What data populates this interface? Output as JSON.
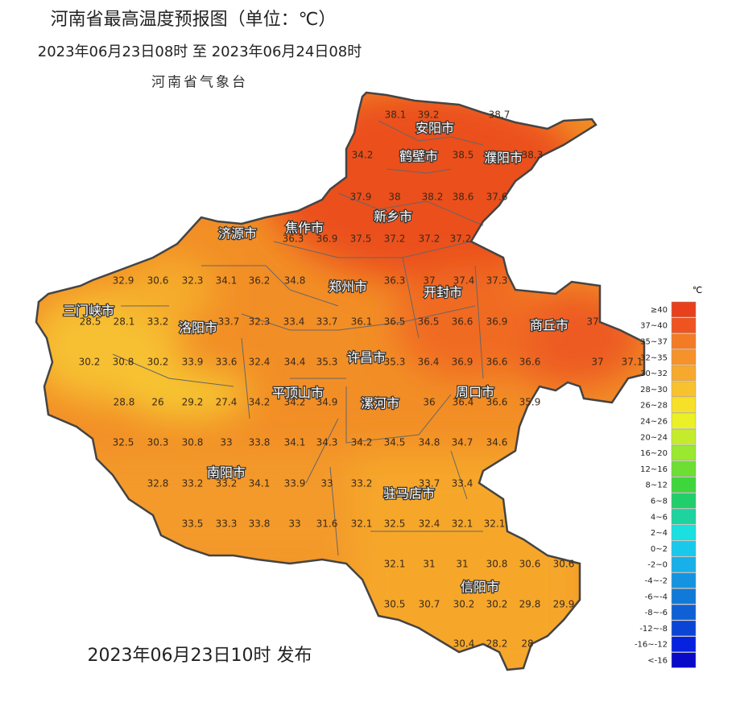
{
  "header": {
    "title": "河南省最高温度预报图（单位：℃）",
    "period": "2023年06月23日08时  至  2023年06月24日08时",
    "issuer": "河南省气象台"
  },
  "footer": "2023年06月23日10时 发布",
  "legend": {
    "unit": "℃",
    "items": [
      {
        "label": "≥40",
        "color": "#e8401c"
      },
      {
        "label": "37~40",
        "color": "#ef5320"
      },
      {
        "label": "35~37",
        "color": "#f47b25"
      },
      {
        "label": "32~35",
        "color": "#f5922a"
      },
      {
        "label": "30~32",
        "color": "#f6a92d"
      },
      {
        "label": "28~30",
        "color": "#f8c22f"
      },
      {
        "label": "26~28",
        "color": "#f7e028"
      },
      {
        "label": "24~26",
        "color": "#eaf126"
      },
      {
        "label": "20~24",
        "color": "#c4ec2d"
      },
      {
        "label": "16~20",
        "color": "#9ae830"
      },
      {
        "label": "12~16",
        "color": "#6ddf32"
      },
      {
        "label": "8~12",
        "color": "#3fd63c"
      },
      {
        "label": "6~8",
        "color": "#21cf6a"
      },
      {
        "label": "4~6",
        "color": "#1dd39e"
      },
      {
        "label": "2~4",
        "color": "#1be0e0"
      },
      {
        "label": "0~2",
        "color": "#19c9ec"
      },
      {
        "label": "-2~0",
        "color": "#17b0e8"
      },
      {
        "label": "-4~-2",
        "color": "#1494e0"
      },
      {
        "label": "-6~-4",
        "color": "#117ad8"
      },
      {
        "label": "-8~-6",
        "color": "#0f60d4"
      },
      {
        "label": "-12~-8",
        "color": "#0b45d6"
      },
      {
        "label": "-16~-12",
        "color": "#0721e0"
      },
      {
        "label": "<-16",
        "color": "#0909c8"
      }
    ]
  },
  "cities": [
    "安阳市",
    "鹤壁市",
    "濮阳市",
    "新乡市",
    "济源市",
    "焦作市",
    "郑州市",
    "开封市",
    "三门峡市",
    "洛阳市",
    "商丘市",
    "许昌市",
    "平顶山市",
    "漯河市",
    "周口市",
    "南阳市",
    "驻马店市",
    "信阳市"
  ],
  "temperatures": [
    38.1,
    39.2,
    38.7,
    34.2,
    38.5,
    38.3,
    37.9,
    38,
    38.2,
    38.6,
    37.6,
    36.3,
    36.9,
    37.5,
    37.2,
    37.2,
    37.2,
    32.9,
    30.6,
    32.3,
    34.1,
    36.2,
    34.8,
    36.3,
    37,
    37.4,
    37.3,
    28.5,
    28.1,
    33.2,
    33.7,
    32.3,
    33.4,
    33.7,
    36.1,
    36.5,
    36.5,
    36.6,
    36.9,
    37,
    30.2,
    30.8,
    30.2,
    33.9,
    33.6,
    32.4,
    34.4,
    35.3,
    35.3,
    36.4,
    36.9,
    36.6,
    36.6,
    37,
    37.1,
    28.8,
    26,
    29.2,
    27.4,
    34.2,
    34.2,
    34.9,
    36,
    36.4,
    36.6,
    35.9,
    32.5,
    30.3,
    30.8,
    33,
    33.8,
    34.1,
    34.3,
    34.2,
    34.5,
    34.8,
    34.7,
    34.6,
    32.8,
    33.2,
    33.2,
    34.1,
    33.9,
    33,
    33.2,
    33.7,
    33.4,
    33.5,
    33.3,
    33.8,
    33,
    31.6,
    32.1,
    32.5,
    32.4,
    32.1,
    32.1,
    32.1,
    31,
    31,
    30.8,
    30.6,
    30.6,
    30.5,
    30.7,
    30.2,
    30.2,
    29.8,
    29.9,
    30.4,
    28.2,
    28
  ]
}
